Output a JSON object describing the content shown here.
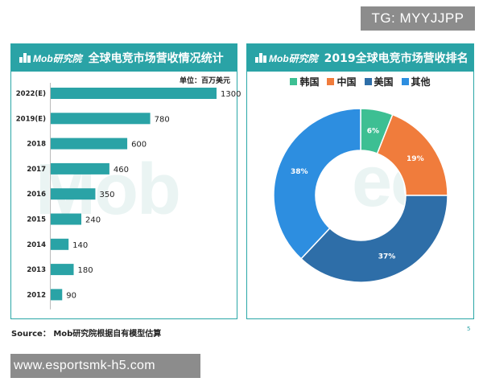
{
  "overlay": {
    "tg_label": "TG: MYYJJPP",
    "url_label": "www.esportsmk-h5.com"
  },
  "brand": {
    "logo_text": "Mob研究院",
    "watermark": "Mob",
    "watermark_right": "ec"
  },
  "colors": {
    "teal": "#2aa3a6",
    "korea": "#3dbf93",
    "china": "#f07c3c",
    "usa": "#2e6ea8",
    "other": "#2d8ee0"
  },
  "footer": {
    "source": "Source：  Mob研究院根据自有模型估算",
    "page": "5"
  },
  "chart_data": [
    {
      "type": "bar",
      "orientation": "horizontal",
      "title": "全球电竞市场营收情况统计",
      "unit": "单位：百万美元",
      "categories": [
        "2022(E)",
        "2019(E)",
        "2018",
        "2017",
        "2016",
        "2015",
        "2014",
        "2013",
        "2012"
      ],
      "values": [
        1300,
        780,
        600,
        460,
        350,
        240,
        140,
        180,
        90
      ],
      "xlim": [
        0,
        1300
      ],
      "grid": false,
      "color": "#2aa3a6"
    },
    {
      "type": "pie",
      "donut": true,
      "title": "2019全球电竞市场营收排名",
      "legend_position": "top",
      "slices": [
        {
          "name": "韩国",
          "value": 6,
          "label": "6%",
          "color": "#3dbf93"
        },
        {
          "name": "中国",
          "value": 19,
          "label": "19%",
          "color": "#f07c3c"
        },
        {
          "name": "美国",
          "value": 37,
          "label": "37%",
          "color": "#2e6ea8"
        },
        {
          "name": "其他",
          "value": 38,
          "label": "38%",
          "color": "#2d8ee0"
        }
      ]
    }
  ]
}
